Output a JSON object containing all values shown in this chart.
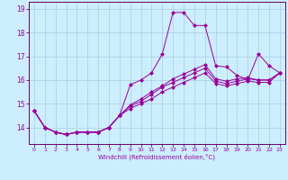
{
  "xlabel": "Windchill (Refroidissement éolien,°C)",
  "xlim": [
    -0.5,
    23.5
  ],
  "ylim": [
    13.3,
    19.3
  ],
  "yticks": [
    14,
    15,
    16,
    17,
    18,
    19
  ],
  "xticks": [
    0,
    1,
    2,
    3,
    4,
    5,
    6,
    7,
    8,
    9,
    10,
    11,
    12,
    13,
    14,
    15,
    16,
    17,
    18,
    19,
    20,
    21,
    22,
    23
  ],
  "background_color": "#cceeff",
  "grid_color": "#aaccdd",
  "line_color": "#990099",
  "spine_color": "#660066",
  "lines": [
    [
      14.7,
      14.0,
      13.8,
      13.7,
      13.8,
      13.8,
      13.8,
      14.0,
      14.5,
      15.8,
      16.0,
      16.3,
      17.1,
      18.85,
      18.85,
      18.3,
      18.3,
      16.6,
      16.55,
      16.2,
      16.0,
      17.1,
      16.6,
      16.3
    ],
    [
      14.7,
      14.0,
      13.8,
      13.7,
      13.8,
      13.8,
      13.8,
      14.0,
      14.5,
      14.8,
      15.0,
      15.2,
      15.5,
      15.7,
      15.9,
      16.1,
      16.3,
      15.85,
      15.75,
      15.85,
      15.95,
      15.9,
      15.9,
      16.3
    ],
    [
      14.7,
      14.0,
      13.8,
      13.7,
      13.8,
      13.8,
      13.8,
      14.0,
      14.5,
      14.9,
      15.1,
      15.4,
      15.7,
      15.9,
      16.1,
      16.3,
      16.5,
      15.95,
      15.85,
      15.95,
      16.05,
      16.0,
      16.0,
      16.3
    ],
    [
      14.7,
      14.0,
      13.8,
      13.7,
      13.8,
      13.8,
      13.8,
      14.0,
      14.5,
      14.95,
      15.2,
      15.5,
      15.75,
      16.05,
      16.25,
      16.45,
      16.65,
      16.05,
      15.95,
      16.05,
      16.1,
      16.0,
      16.0,
      16.3
    ]
  ]
}
